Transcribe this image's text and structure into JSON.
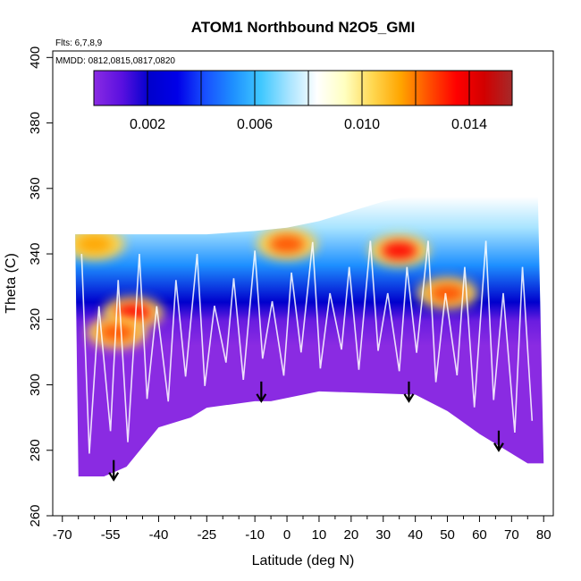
{
  "chart_data": {
    "type": "heatmap",
    "title": "ATOM1 Northbound N2O5_GMI",
    "annotations": [
      "Flts: 6,7,8,9",
      "MMDD: 0812,0815,0817,0820"
    ],
    "xlabel": "Latitude (deg N)",
    "ylabel": "Theta (C)",
    "xlim": [
      -73,
      83
    ],
    "ylim": [
      260,
      402
    ],
    "x_ticks": [
      -70,
      -55,
      -40,
      -25,
      -10,
      0,
      10,
      20,
      30,
      40,
      50,
      60,
      70,
      80
    ],
    "x_minor_ticks": [
      -65,
      -60,
      -50,
      -45,
      -35,
      -30,
      -20,
      -15,
      -5,
      5,
      15,
      25,
      35,
      45,
      55,
      65,
      75
    ],
    "y_ticks": [
      260,
      280,
      300,
      320,
      340,
      360,
      380,
      400
    ],
    "colorbar": {
      "range": [
        0,
        0.0156
      ],
      "ticks": [
        "0.002",
        "0.006",
        "0.010",
        "0.014"
      ],
      "tick_values": [
        0.002,
        0.006,
        0.01,
        0.014
      ],
      "gridlines": [
        0.002,
        0.004,
        0.006,
        0.008,
        0.01,
        0.012,
        0.014
      ],
      "colors": [
        "#8a2be2",
        "#5a10e0",
        "#0000cd",
        "#0000e8",
        "#1850ff",
        "#1e90ff",
        "#40c8ff",
        "#a8e4ff",
        "#ffffff",
        "#ffffc0",
        "#ffd750",
        "#ffa500",
        "#ff5000",
        "#ff0000",
        "#d20000",
        "#a52a2a"
      ]
    },
    "arrows": [
      {
        "lat": -54,
        "theta": 271
      },
      {
        "lat": -8,
        "theta": 295
      },
      {
        "lat": 38,
        "theta": 295
      },
      {
        "lat": 66,
        "theta": 280
      }
    ],
    "ground_boundary": [
      [
        -65,
        272
      ],
      [
        -57,
        272
      ],
      [
        -50,
        275
      ],
      [
        -40,
        287
      ],
      [
        -30,
        290
      ],
      [
        -25,
        293
      ],
      [
        -10,
        295
      ],
      [
        -5,
        295
      ],
      [
        10,
        298
      ],
      [
        40,
        297
      ],
      [
        50,
        292
      ],
      [
        60,
        285
      ],
      [
        70,
        279
      ],
      [
        75,
        276
      ],
      [
        80,
        276
      ]
    ],
    "top_boundary": [
      [
        -66,
        346
      ],
      [
        -55,
        346
      ],
      [
        -25,
        346
      ],
      [
        -10,
        347
      ],
      [
        0,
        348
      ],
      [
        10,
        350
      ],
      [
        20,
        353
      ],
      [
        30,
        356
      ],
      [
        40,
        358
      ],
      [
        50,
        361
      ],
      [
        60,
        363
      ],
      [
        70,
        365
      ],
      [
        75,
        367
      ],
      [
        78,
        367
      ]
    ],
    "high_values": [
      {
        "lat": -48,
        "theta": 322,
        "value": 0.013
      },
      {
        "lat": -53,
        "theta": 316,
        "value": 0.012
      },
      {
        "lat": -60,
        "theta": 343,
        "value": 0.011
      },
      {
        "lat": 0,
        "theta": 343,
        "value": 0.012
      },
      {
        "lat": 35,
        "theta": 341,
        "value": 0.013
      },
      {
        "lat": 50,
        "theta": 328,
        "value": 0.012
      }
    ]
  }
}
